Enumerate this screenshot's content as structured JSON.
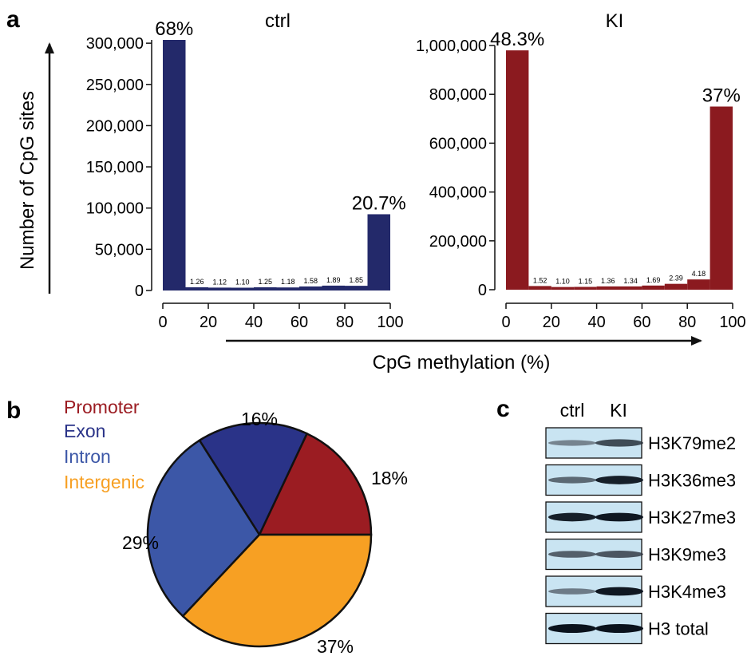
{
  "panel_labels": {
    "a": "a",
    "b": "b",
    "c": "c"
  },
  "colors": {
    "ctrl_bar": "#23296a",
    "ki_bar": "#8b1a1f",
    "promoter": "#9b1c22",
    "exon": "#2a3388",
    "intron": "#3c57a7",
    "intergenic": "#f7a023",
    "blot_bg": "#c9e4f2"
  },
  "shared_axis": {
    "ylabel": "Number of  CpG sites",
    "xlabel": "CpG methylation (%)"
  },
  "chart_data": [
    {
      "type": "bar",
      "title": "ctrl",
      "color": "#23296a",
      "bin_edges": [
        0,
        10,
        20,
        30,
        40,
        50,
        60,
        70,
        80,
        90,
        100
      ],
      "values": [
        304000,
        3900,
        3500,
        3400,
        3900,
        3700,
        4900,
        5900,
        5700,
        92500
      ],
      "bar_labels": [
        "68%",
        "1.26",
        "1.12",
        "1.10",
        "1.25",
        "1.18",
        "1.58",
        "1.89",
        "1.85",
        "20.7%"
      ],
      "yticks": [
        0,
        50000,
        100000,
        150000,
        200000,
        250000,
        300000
      ],
      "ytick_labels": [
        "0",
        "50,000",
        "100,000",
        "150,000",
        "200,000",
        "250,000",
        "300,000"
      ],
      "xticks": [
        0,
        20,
        40,
        60,
        80,
        100
      ],
      "xtick_labels": [
        "0",
        "20",
        "40",
        "60",
        "80",
        "100"
      ],
      "ylim": [
        0,
        304000
      ],
      "xlim": [
        0,
        100
      ]
    },
    {
      "type": "bar",
      "title": "KI",
      "color": "#8b1a1f",
      "bin_edges": [
        0,
        10,
        20,
        30,
        40,
        50,
        60,
        70,
        80,
        90,
        100
      ],
      "values": [
        980000,
        15000,
        11000,
        11500,
        13500,
        13500,
        17000,
        24000,
        42000,
        750000
      ],
      "bar_labels": [
        "48.3%",
        "1.52",
        "1.10",
        "1.15",
        "1.36",
        "1.34",
        "1.69",
        "2.39",
        "4.18",
        "37%"
      ],
      "yticks": [
        0,
        200000,
        400000,
        600000,
        800000,
        1000000
      ],
      "ytick_labels": [
        "0",
        "200,000",
        "400,000",
        "600,000",
        "800,000",
        "1,000,000"
      ],
      "xticks": [
        0,
        20,
        40,
        60,
        80,
        100
      ],
      "xtick_labels": [
        "0",
        "20",
        "40",
        "60",
        "80",
        "100"
      ],
      "ylim": [
        0,
        1000000
      ],
      "xlim": [
        0,
        100
      ]
    },
    {
      "type": "pie",
      "legend": [
        "Promoter",
        "Exon",
        "Intron",
        "Intergenic"
      ],
      "slices": [
        {
          "name": "Promoter",
          "value": 18,
          "label": "18%"
        },
        {
          "name": "Exon",
          "value": 16,
          "label": "16%"
        },
        {
          "name": "Intron",
          "value": 29,
          "label": "29%"
        },
        {
          "name": "Intergenic",
          "value": 37,
          "label": "37%"
        }
      ]
    }
  ],
  "western_blot": {
    "columns": [
      "ctrl",
      "KI"
    ],
    "rows": [
      {
        "label": "H3K79me2",
        "ctrl_intensity": 0.45,
        "ki_intensity": 0.75
      },
      {
        "label": "H3K36me3",
        "ctrl_intensity": 0.6,
        "ki_intensity": 0.95
      },
      {
        "label": "H3K27me3",
        "ctrl_intensity": 0.95,
        "ki_intensity": 0.98
      },
      {
        "label": "H3K9me3",
        "ctrl_intensity": 0.65,
        "ki_intensity": 0.7
      },
      {
        "label": "H3K4me3",
        "ctrl_intensity": 0.5,
        "ki_intensity": 0.98
      },
      {
        "label": "H3 total",
        "ctrl_intensity": 1.0,
        "ki_intensity": 1.0
      }
    ]
  }
}
